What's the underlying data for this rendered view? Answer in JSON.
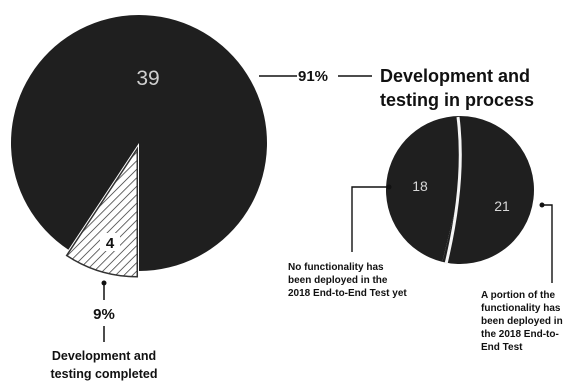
{
  "chart_data": [
    {
      "type": "pie",
      "categories": [
        "Development and testing in process",
        "Development and testing completed"
      ],
      "values": [
        39,
        4
      ],
      "value_labels": [
        "39",
        "4"
      ],
      "percent_labels": [
        "91%",
        "9%"
      ],
      "category_labels": [
        [
          "Development and",
          "testing in process"
        ],
        [
          "Development and",
          "testing completed"
        ]
      ],
      "colors": [
        "#1f1f1f",
        "#f1f1f1"
      ],
      "slice_styles": [
        "solid",
        "hatched"
      ],
      "exploded_slice": 1
    },
    {
      "type": "pie",
      "categories": [
        "No functionality has been deployed in the 2018 End-to-End Test yet",
        "A portion of the functionality has been deployed in the 2018 End-to-End Test"
      ],
      "values": [
        18,
        21
      ],
      "value_labels": [
        "18",
        "21"
      ],
      "category_labels": [
        [
          "No functionality has",
          "been deployed in the",
          "2018 End-to-End Test yet"
        ],
        [
          "A portion of the",
          "functionality has",
          "been deployed in",
          "the 2018 End-to-",
          "End Test"
        ]
      ],
      "colors": [
        "#1f1f1f",
        "#1f1f1f"
      ],
      "divider_color": "#f4f4f4"
    }
  ]
}
